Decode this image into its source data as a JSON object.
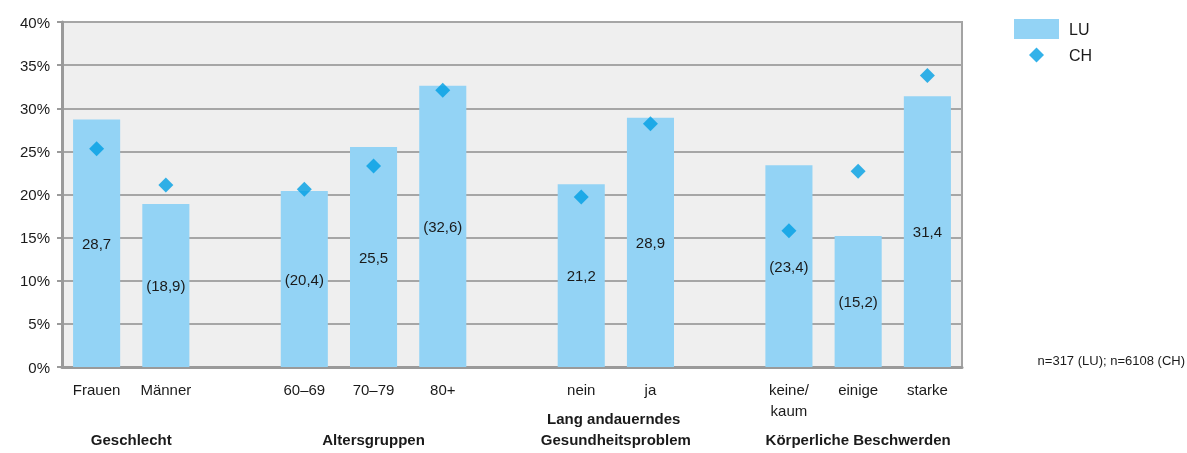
{
  "chart_data": {
    "type": "bar",
    "categories": [
      "Frauen",
      "Männer",
      null,
      "60–69",
      "70–79",
      "80+",
      null,
      "nein",
      "ja",
      null,
      "keine/kaum",
      "einige",
      "starke"
    ],
    "series": [
      {
        "name": "LU",
        "color": "#93d3f5",
        "values": [
          28.7,
          18.9,
          null,
          20.4,
          25.5,
          32.6,
          null,
          21.2,
          28.9,
          null,
          23.4,
          15.2,
          31.4
        ],
        "value_labels": [
          "28,7",
          "(18,9)",
          null,
          "(20,4)",
          "25,5",
          "(32,6)",
          null,
          "21,2",
          "28,9",
          null,
          "(23,4)",
          "(15,2)",
          "31,4"
        ]
      },
      {
        "name": "CH",
        "type": "scatter",
        "color": "#009fe3",
        "marker": "diamond",
        "values": [
          25.3,
          21.1,
          null,
          20.6,
          23.3,
          32.1,
          null,
          19.7,
          28.2,
          null,
          15.8,
          22.7,
          33.8
        ]
      }
    ],
    "ylim": [
      0,
      40
    ],
    "yticks": [
      {
        "value": 0,
        "label": "0%"
      },
      {
        "value": 5,
        "label": "5%"
      },
      {
        "value": 10,
        "label": "10%"
      },
      {
        "value": 15,
        "label": "15%"
      },
      {
        "value": 20,
        "label": "20%"
      },
      {
        "value": 25,
        "label": "25%"
      },
      {
        "value": 30,
        "label": "30%"
      },
      {
        "value": 35,
        "label": "35%"
      },
      {
        "value": 40,
        "label": "40%"
      }
    ],
    "grid": "y",
    "legend": "top right",
    "annotations": [
      "Geschlecht",
      "Altersgruppen",
      "Lang andauerndes Gesundheitsproblem",
      "Körperliche Beschwerden",
      "n=317 (LU); n=6108 (CH)"
    ]
  }
}
